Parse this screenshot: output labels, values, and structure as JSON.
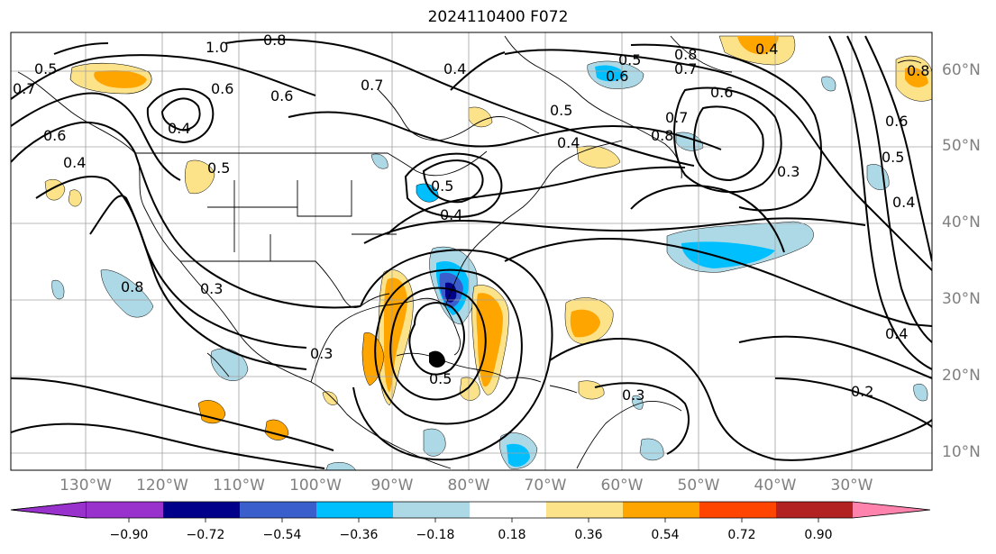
{
  "title": "2024110400 F072",
  "latitude_labels": [
    "60°N",
    "50°N",
    "40°N",
    "30°N",
    "20°N",
    "10°N"
  ],
  "longitude_labels": [
    "130°W",
    "120°W",
    "110°W",
    "100°W",
    "90°W",
    "80°W",
    "70°W",
    "60°W",
    "50°W",
    "40°W",
    "30°W"
  ],
  "colorbar": {
    "tick_labels": [
      "−0.90",
      "−0.72",
      "−0.54",
      "−0.36",
      "−0.18",
      "0.18",
      "0.36",
      "0.54",
      "0.72",
      "0.90"
    ],
    "colors": [
      "#9932cc",
      "#00008b",
      "#3a5fcd",
      "#00bfff",
      "#add8e6",
      "#ffffff",
      "#fce38a",
      "#ffa500",
      "#ff4500",
      "#b22222",
      "#ff83ac",
      "#ff83ac"
    ]
  },
  "contour_labels": [
    "1.0",
    "0.8",
    "0.5",
    "0.7",
    "0.6",
    "0.4",
    "0.4",
    "0.5",
    "0.4",
    "0.7",
    "0.6",
    "0.5",
    "0.8",
    "0.7",
    "0.6",
    "0.8",
    "0.7",
    "0.6",
    "0.5",
    "0.4",
    "0.8",
    "0.6",
    "0.5",
    "0.4",
    "0.3",
    "0.3",
    "0.3",
    "0.5",
    "0.4",
    "0.2",
    "0.4",
    "0.8",
    "0.6",
    "0.5",
    "0.4",
    "0.3"
  ]
}
